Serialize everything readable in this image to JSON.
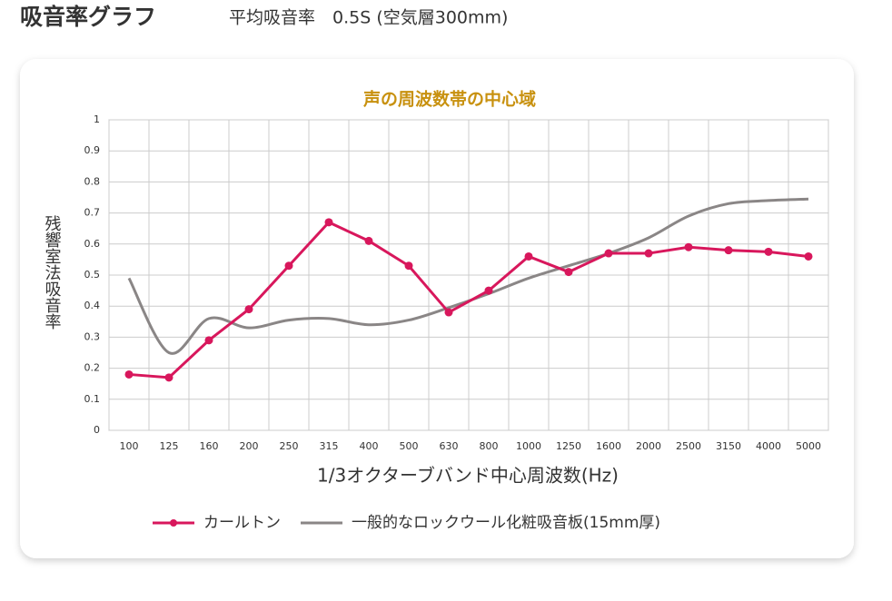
{
  "chart_data": {
    "type": "line",
    "title": "吸音率グラフ",
    "subtitle": "平均吸音率　0.5S (空気層300mm)",
    "annotation": "声の周波数帯の中心域",
    "y_label": "残響室法吸音率",
    "x_label": "1/3オクターブバンド中心周波数(Hz)",
    "categories": [
      "100",
      "125",
      "160",
      "200",
      "250",
      "315",
      "400",
      "500",
      "630",
      "800",
      "1000",
      "1250",
      "1600",
      "2000",
      "2500",
      "3150",
      "4000",
      "5000"
    ],
    "series": [
      {
        "name": "カールトン",
        "color": "#d8175c",
        "values": [
          0.18,
          0.17,
          0.29,
          0.39,
          0.53,
          0.67,
          0.61,
          0.53,
          0.38,
          0.45,
          0.56,
          0.51,
          0.57,
          0.57,
          0.59,
          0.58,
          0.575,
          0.56
        ]
      },
      {
        "name": "一般的なロックウール化粧吸音板(15mm厚)",
        "color": "#8a8686",
        "values": [
          0.49,
          0.25,
          0.36,
          0.33,
          0.355,
          0.36,
          0.34,
          0.355,
          0.395,
          0.44,
          0.49,
          0.53,
          0.57,
          0.62,
          0.69,
          0.73,
          0.74,
          0.745
        ]
      }
    ],
    "ylim": [
      0,
      1
    ],
    "yticks": [
      0,
      0.1,
      0.2,
      0.3,
      0.4,
      0.5,
      0.6,
      0.7,
      0.8,
      0.9,
      1
    ],
    "grid": true
  }
}
